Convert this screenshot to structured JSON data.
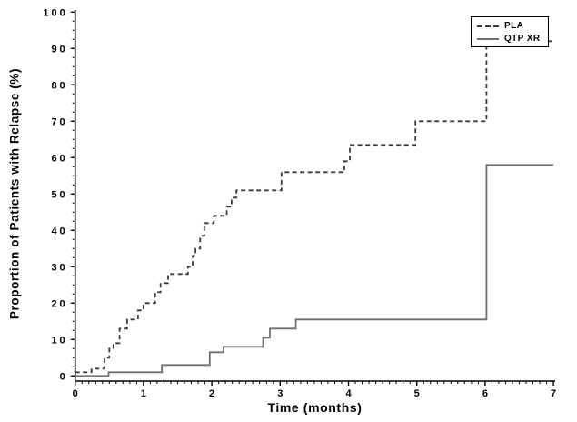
{
  "figure": {
    "background": "#ffffff",
    "axis_color": "#000000"
  },
  "legend": {
    "position": "top-right",
    "entries": [
      {
        "label": "PLA",
        "line_style": "dashed",
        "color": "#3c3c3c"
      },
      {
        "label": "QTP XR",
        "line_style": "solid",
        "color": "#707070"
      }
    ]
  },
  "chart_data": {
    "type": "line",
    "subtype": "kaplan-meier-step",
    "title": "",
    "xlabel": "Time (months)",
    "ylabel": "Proportion of Patients with Relapse (%)",
    "xlim": [
      0,
      7
    ],
    "ylim": [
      0,
      100
    ],
    "x_major_ticks": [
      0,
      1,
      2,
      3,
      4,
      5,
      6,
      7
    ],
    "x_minor_step": 0.1,
    "y_major_ticks": [
      0,
      10,
      20,
      30,
      40,
      50,
      60,
      70,
      80,
      90,
      100
    ],
    "y_minor_step": 2.5,
    "grid": false,
    "legend_position": "top-right",
    "series": [
      {
        "name": "PLA",
        "line_style": "dashed",
        "color": "#3c3c3c",
        "points": [
          [
            0,
            1
          ],
          [
            0.24,
            2
          ],
          [
            0.43,
            5
          ],
          [
            0.5,
            7.5
          ],
          [
            0.56,
            9
          ],
          [
            0.65,
            13
          ],
          [
            0.76,
            15.5
          ],
          [
            0.92,
            18
          ],
          [
            1.0,
            20
          ],
          [
            1.17,
            23
          ],
          [
            1.25,
            25.5
          ],
          [
            1.36,
            28
          ],
          [
            1.65,
            30
          ],
          [
            1.72,
            33
          ],
          [
            1.76,
            35
          ],
          [
            1.83,
            38.5
          ],
          [
            1.89,
            42
          ],
          [
            2.03,
            44
          ],
          [
            2.22,
            46.5
          ],
          [
            2.29,
            49
          ],
          [
            2.36,
            51
          ],
          [
            3.02,
            56
          ],
          [
            3.94,
            59
          ],
          [
            4.02,
            63.5
          ],
          [
            4.98,
            70
          ],
          [
            6.02,
            92
          ]
        ],
        "end_x": 7
      },
      {
        "name": "QTP XR",
        "line_style": "solid",
        "color": "#707070",
        "points": [
          [
            0,
            0
          ],
          [
            0.49,
            1
          ],
          [
            1.27,
            3
          ],
          [
            1.97,
            6.5
          ],
          [
            2.17,
            8
          ],
          [
            2.75,
            10.5
          ],
          [
            2.85,
            13
          ],
          [
            3.23,
            15.5
          ],
          [
            6.02,
            58
          ]
        ],
        "end_x": 7
      }
    ]
  }
}
